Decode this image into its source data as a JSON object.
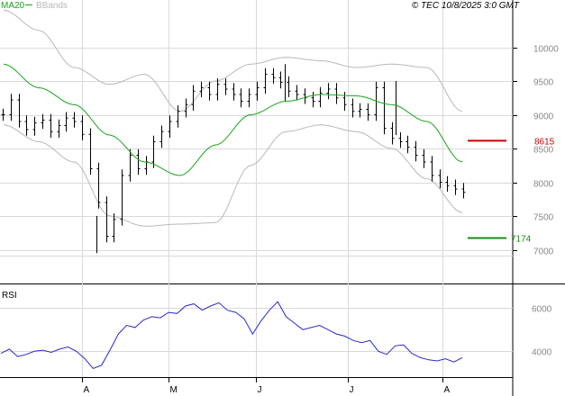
{
  "header": {
    "legend_ma": "MA20",
    "legend_bb": "BBands",
    "copyright": "© TEC 10/8/2025 3:0 GMT"
  },
  "rsi_panel": {
    "label": "RSI"
  },
  "colors": {
    "ma": "#1aa51a",
    "bands": "#b8b8b8",
    "candles": "#000000",
    "rsi": "#2a2ac8",
    "resistance": "#cc0000",
    "support": "#1a8a1a",
    "grid": "#d9d9d9",
    "axis_text": "#888888"
  },
  "chart_data": [
    {
      "type": "line",
      "title": "",
      "x_labels": [
        "A",
        "M",
        "J",
        "J",
        "A"
      ],
      "ylim": [
        6500,
        10700
      ],
      "y_ticks": [
        "7000",
        "7500",
        "8000",
        "8500",
        "9000",
        "9500",
        "10000"
      ],
      "grid": true,
      "legend": [
        "MA20",
        "BBands"
      ],
      "series": [
        {
          "name": "MA20",
          "x": [
            0,
            10,
            20,
            30,
            40,
            50,
            60,
            70,
            80,
            90,
            100,
            110,
            120,
            130
          ],
          "values": [
            9750,
            9400,
            9150,
            8700,
            8300,
            8100,
            8550,
            9000,
            9200,
            9300,
            9280,
            9150,
            8900,
            8300
          ]
        },
        {
          "name": "BBands",
          "x": [
            0,
            10,
            20,
            30,
            40,
            50,
            60,
            70,
            80,
            90,
            100,
            110,
            120,
            130
          ],
          "upper": [
            10550,
            10250,
            9700,
            9450,
            9600,
            9050,
            9500,
            9750,
            9850,
            9800,
            9700,
            9750,
            9700,
            9050
          ],
          "lower": [
            8850,
            8600,
            8300,
            7500,
            7350,
            7380,
            7400,
            8250,
            8750,
            8850,
            8750,
            8500,
            8050,
            7550
          ]
        }
      ],
      "price": [
        9000,
        9220,
        8900,
        8780,
        8880,
        8920,
        8750,
        8840,
        8950,
        8900,
        8710,
        8200,
        7700,
        7200,
        7450,
        8100,
        8400,
        8200,
        8300,
        8600,
        8750,
        8900,
        9050,
        9150,
        9350,
        9400,
        9300,
        9450,
        9380,
        9300,
        9200,
        9300,
        9400,
        9600,
        9550,
        9480,
        9350,
        9300,
        9250,
        9200,
        9320,
        9380,
        9250,
        9150,
        9050,
        9080,
        9000,
        9400,
        8800,
        8650,
        8600,
        8520,
        8400,
        8300,
        8100,
        8000,
        7950,
        7900,
        7850
      ],
      "levels": [
        {
          "name": "resistance",
          "value": 8615,
          "label": "8615"
        },
        {
          "name": "support",
          "value": 7174,
          "label": "7174"
        }
      ]
    },
    {
      "type": "line",
      "title": "RSI",
      "x_labels": [
        "A",
        "M",
        "J",
        "J",
        "A"
      ],
      "ylim": [
        2800,
        7100
      ],
      "y_ticks": [
        "4000",
        "6000"
      ],
      "grid": true,
      "series": [
        {
          "name": "RSI",
          "values": [
            3900,
            4100,
            3750,
            3850,
            4000,
            4050,
            3950,
            4100,
            4200,
            4000,
            3650,
            3200,
            3350,
            4050,
            4800,
            5200,
            5100,
            5450,
            5600,
            5550,
            5800,
            5750,
            6100,
            6200,
            5900,
            6100,
            6250,
            5900,
            5800,
            5500,
            4800,
            5400,
            5900,
            6300,
            5600,
            5300,
            5000,
            5100,
            5200,
            5000,
            4800,
            4700,
            4500,
            4400,
            4500,
            4000,
            3850,
            4250,
            4300,
            3900,
            3700,
            3600,
            3550,
            3650,
            3500,
            3700
          ]
        }
      ]
    }
  ]
}
